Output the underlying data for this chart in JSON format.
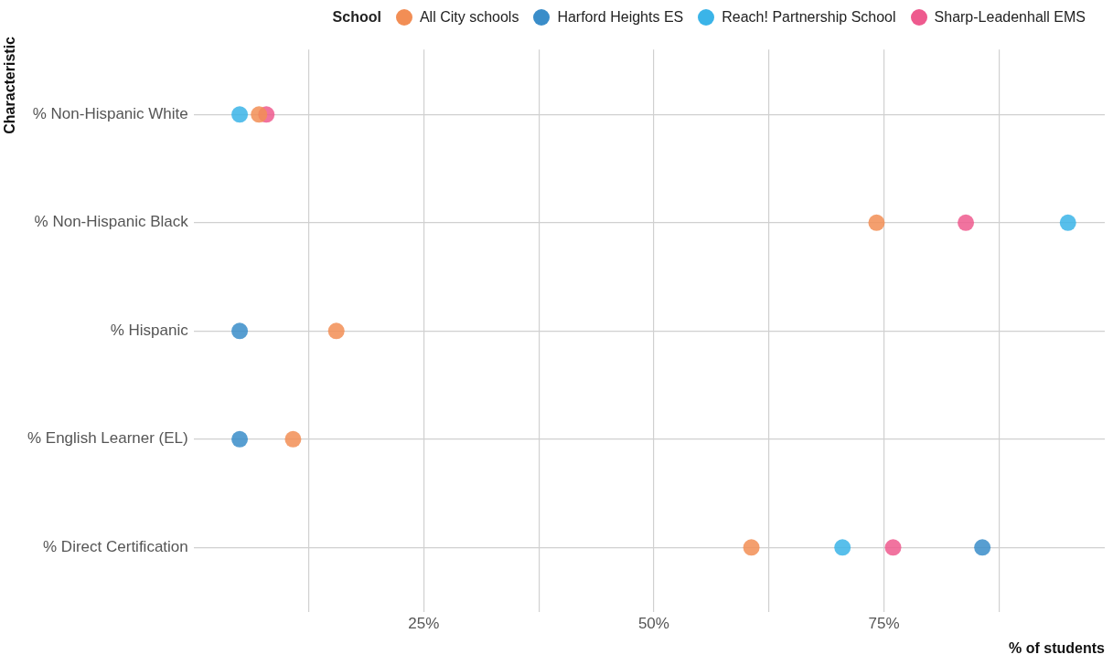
{
  "chart_data": {
    "type": "scatter",
    "orientation": "horizontal",
    "ylabel": "Characteristic",
    "xlabel": "% of students",
    "legend_title": "School",
    "legend": "top right",
    "grid": true,
    "marker": "circle",
    "categories": [
      "% Non-Hispanic White",
      "% Non-Hispanic Black",
      "% Hispanic",
      "% English Learner (EL)",
      "% Direct Certification"
    ],
    "xlim": [
      0,
      99
    ],
    "xticks": [
      {
        "value": 12.5,
        "label": null
      },
      {
        "value": 25,
        "label": "25%"
      },
      {
        "value": 37.5,
        "label": null
      },
      {
        "value": 50,
        "label": "50%"
      },
      {
        "value": 62.5,
        "label": null
      },
      {
        "value": 75,
        "label": "75%"
      },
      {
        "value": 87.5,
        "label": null
      }
    ],
    "series": [
      {
        "name": "All City schools",
        "color": "#f28e55",
        "values": [
          7.1,
          74.2,
          15.5,
          10.8,
          60.6
        ]
      },
      {
        "name": "Harford Heights ES",
        "color": "#3a8dc9",
        "values": [
          null,
          null,
          5,
          5,
          85.7
        ]
      },
      {
        "name": "Reach! Partnership School",
        "color": "#3bb4e8",
        "values": [
          5,
          95,
          null,
          null,
          70.5
        ]
      },
      {
        "name": "Sharp-Leadenhall EMS",
        "color": "#ee5a8e",
        "values": [
          7.9,
          83.9,
          null,
          null,
          76
        ]
      }
    ]
  }
}
